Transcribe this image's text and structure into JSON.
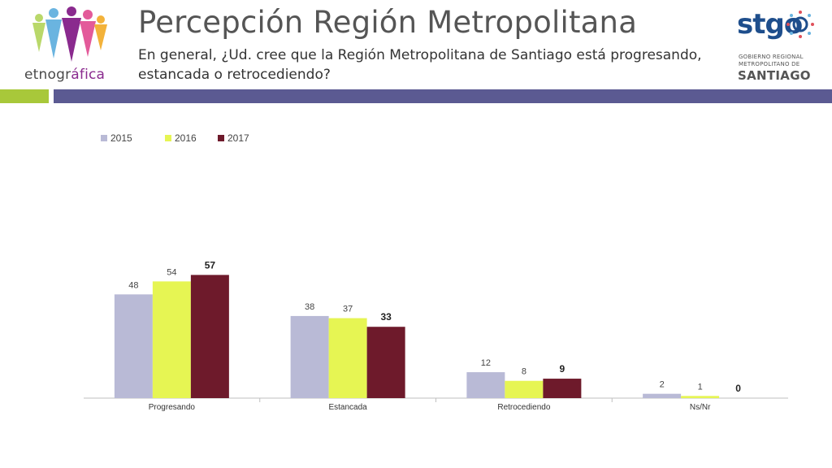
{
  "header": {
    "title": "Percepción Región Metropolitana",
    "subtitle": "En general, ¿Ud. cree que la Región Metropolitana de Santiago está progresando, estancada o retrocediendo?",
    "logo_left": {
      "text_main": "etnogr",
      "text_accent": "áfica",
      "icon": "people-figures-icon"
    },
    "logo_right": {
      "mark": "stgo",
      "line1": "GOBIERNO REGIONAL",
      "line2": "METROPOLITANO DE",
      "line3": "SANTIAGO",
      "icon": "sun-rays-icon"
    }
  },
  "colors": {
    "band_green": "#a8c83a",
    "band_purple": "#5b5a92",
    "series": [
      "#b9bad6",
      "#e6f553",
      "#6e1a2b"
    ]
  },
  "chart_data": {
    "type": "bar",
    "categories": [
      "Progresando",
      "Estancada",
      "Retrocediendo",
      "Ns/Nr"
    ],
    "series": [
      {
        "name": "2015",
        "values": [
          48,
          38,
          12,
          2
        ]
      },
      {
        "name": "2016",
        "values": [
          54,
          37,
          8,
          1
        ]
      },
      {
        "name": "2017",
        "values": [
          57,
          33,
          9,
          0
        ]
      }
    ],
    "bold_series": "2017",
    "ylim": [
      0,
      60
    ],
    "legend_position": "top-left",
    "grid": false
  }
}
